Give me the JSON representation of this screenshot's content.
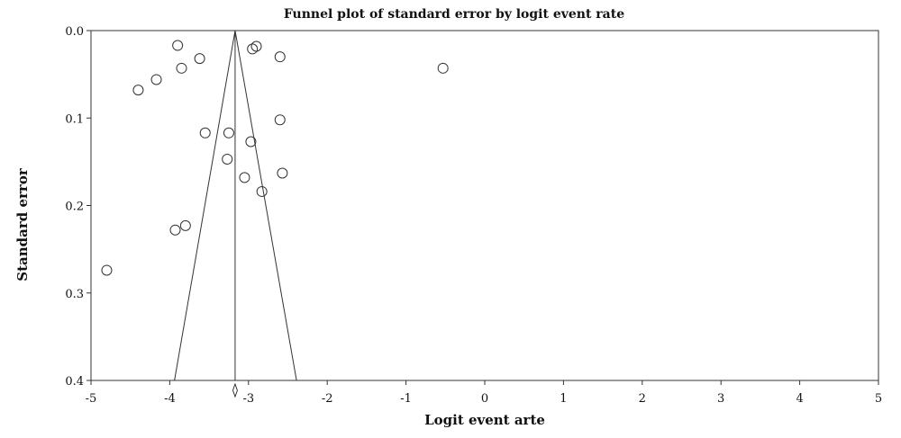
{
  "chart_data": {
    "type": "scatter",
    "title": "Funnel plot of standard error by logit event rate",
    "xlabel": "Logit event arte",
    "ylabel": "Standard error",
    "xlim": [
      -5,
      5
    ],
    "ylim": [
      0.4,
      0.0
    ],
    "y_inverted": true,
    "xticks": [
      "-5",
      "-4",
      "-3",
      "-2",
      "-1",
      "0",
      "1",
      "2",
      "3",
      "4",
      "5"
    ],
    "yticks": [
      "0.0",
      "0.1",
      "0.2",
      "0.3",
      "0.4"
    ],
    "grid": false,
    "legend": "none",
    "marker": "open-circle",
    "points": [
      {
        "x": -3.9,
        "y": 0.017
      },
      {
        "x": -2.95,
        "y": 0.021
      },
      {
        "x": -2.9,
        "y": 0.018
      },
      {
        "x": -3.62,
        "y": 0.032
      },
      {
        "x": -2.6,
        "y": 0.03
      },
      {
        "x": -3.85,
        "y": 0.043
      },
      {
        "x": -0.53,
        "y": 0.043
      },
      {
        "x": -4.17,
        "y": 0.056
      },
      {
        "x": -4.4,
        "y": 0.068
      },
      {
        "x": -2.6,
        "y": 0.102
      },
      {
        "x": -3.55,
        "y": 0.117
      },
      {
        "x": -3.25,
        "y": 0.117
      },
      {
        "x": -2.97,
        "y": 0.127
      },
      {
        "x": -3.27,
        "y": 0.147
      },
      {
        "x": -2.57,
        "y": 0.163
      },
      {
        "x": -3.05,
        "y": 0.168
      },
      {
        "x": -2.83,
        "y": 0.184
      },
      {
        "x": -3.8,
        "y": 0.223
      },
      {
        "x": -3.93,
        "y": 0.228
      },
      {
        "x": -4.8,
        "y": 0.274
      }
    ],
    "funnel": {
      "center": -3.17,
      "bottom_left": -3.94,
      "bottom_right": -2.39
    }
  }
}
